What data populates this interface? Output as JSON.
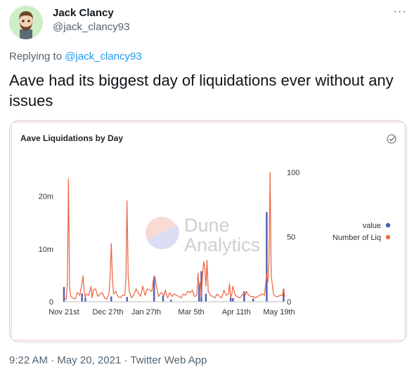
{
  "tweet": {
    "author_name": "Jack Clancy",
    "author_handle": "@jack_clancy93",
    "more_label": "···",
    "reply_prefix": "Replying to",
    "reply_to": "@jack_clancy93",
    "text": "Aave had its biggest day of liquidations ever without any issues",
    "time": "9:22 AM",
    "date": "May 20, 2021",
    "source": "Twitter Web App",
    "sep": "·"
  },
  "colors": {
    "accent": "#1d9bf0",
    "series_value": "#4c5fb5",
    "series_liq": "#ef6b4a"
  },
  "chart_data": {
    "type": "line",
    "title": "Aave Liquidations by Day",
    "watermark_line1": "Dune",
    "watermark_line2": "Analytics",
    "x_ticks": [
      "Nov 21st",
      "Dec 27th",
      "Jan 27th",
      "Mar 5th",
      "Apr 11th",
      "May 19th"
    ],
    "y_left_ticks": [
      "0",
      "10m",
      "20m"
    ],
    "y_right_ticks": [
      "0",
      "50",
      "100"
    ],
    "ylim_left": [
      0,
      27000000
    ],
    "ylim_right": [
      0,
      110
    ],
    "grid": false,
    "legend_position": "right",
    "series": [
      {
        "name": "value",
        "axis": "left",
        "style": "bar",
        "x": [
          0,
          16,
          19,
          42,
          56,
          80,
          88,
          95,
          120,
          122,
          126,
          148,
          150,
          160,
          168,
          180,
          195
        ],
        "values": [
          2800000,
          1600000,
          700000,
          1000000,
          900000,
          4800000,
          1200000,
          400000,
          3500000,
          5800000,
          1500000,
          800000,
          700000,
          2000000,
          600000,
          17000000,
          2400000
        ]
      },
      {
        "name": "Number of Liq",
        "axis": "right",
        "style": "line",
        "x": [
          0,
          2,
          3,
          4,
          5,
          6,
          8,
          10,
          12,
          14,
          16,
          17,
          18,
          19,
          20,
          22,
          24,
          25,
          26,
          28,
          30,
          32,
          34,
          36,
          38,
          40,
          41,
          42,
          43,
          44,
          46,
          48,
          50,
          52,
          54,
          55,
          56,
          57,
          58,
          60,
          62,
          64,
          66,
          68,
          70,
          72,
          74,
          76,
          78,
          79,
          80,
          81,
          82,
          84,
          86,
          88,
          89,
          90,
          92,
          94,
          96,
          98,
          100,
          102,
          104,
          106,
          108,
          110,
          112,
          114,
          116,
          118,
          119,
          120,
          121,
          122,
          123,
          124,
          125,
          126,
          127,
          128,
          130,
          132,
          134,
          136,
          138,
          140,
          142,
          144,
          146,
          147,
          148,
          149,
          150,
          152,
          154,
          156,
          158,
          160,
          161,
          162,
          164,
          166,
          168,
          170,
          172,
          174,
          176,
          178,
          180,
          181,
          182,
          183,
          184,
          186,
          188,
          190,
          192,
          194,
          195,
          196
        ],
        "values": [
          3,
          2,
          14,
          95,
          10,
          4,
          3,
          2,
          7,
          5,
          14,
          20,
          8,
          3,
          6,
          5,
          12,
          3,
          9,
          10,
          4,
          6,
          7,
          3,
          2,
          6,
          20,
          45,
          18,
          6,
          8,
          4,
          3,
          5,
          5,
          18,
          78,
          20,
          8,
          3,
          5,
          10,
          7,
          4,
          12,
          5,
          10,
          9,
          8,
          15,
          20,
          18,
          12,
          4,
          7,
          6,
          5,
          9,
          3,
          7,
          4,
          6,
          5,
          4,
          3,
          6,
          5,
          8,
          7,
          9,
          4,
          5,
          22,
          12,
          15,
          3,
          20,
          31,
          26,
          12,
          32,
          8,
          5,
          4,
          3,
          6,
          4,
          3,
          9,
          5,
          6,
          14,
          3,
          6,
          12,
          5,
          4,
          3,
          5,
          7,
          5,
          8,
          5,
          4,
          4,
          3,
          4,
          5,
          6,
          5,
          22,
          15,
          30,
          100,
          20,
          6,
          4,
          4,
          5,
          5,
          10,
          4
        ]
      }
    ]
  }
}
